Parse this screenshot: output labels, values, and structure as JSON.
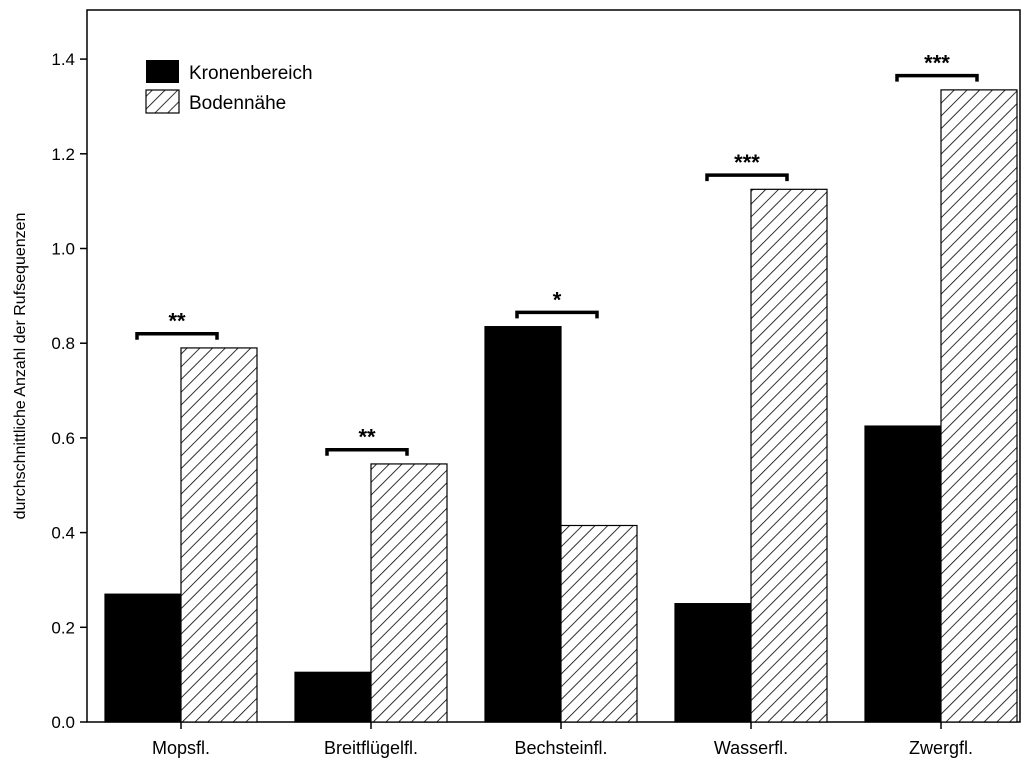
{
  "chart_data": {
    "type": "bar",
    "title": "",
    "xlabel": "",
    "ylabel": "durchschnittliche Anzahl der Rufsequenzen",
    "ylim": [
      0,
      1.5
    ],
    "yticks": [
      "0.0",
      "0.2",
      "0.4",
      "0.6",
      "0.8",
      "1.0",
      "1.2",
      "1.4"
    ],
    "grid": false,
    "legend_position": "top-left",
    "categories": [
      "Mopsfl.",
      "Breitflügelfl.",
      "Bechsteinfl.",
      "Wasserfl.",
      "Zwergfl."
    ],
    "series": [
      {
        "name": "Kronenbereich",
        "fill": "solid",
        "color": "#000000",
        "values": [
          0.27,
          0.105,
          0.835,
          0.25,
          0.625
        ]
      },
      {
        "name": "Bodennähe",
        "fill": "hatched",
        "color": "#000000",
        "values": [
          0.79,
          0.545,
          0.415,
          1.125,
          1.335
        ]
      }
    ],
    "significance": [
      {
        "category": "Mopsfl.",
        "label": "**",
        "y": 0.82
      },
      {
        "category": "Breitflügelfl.",
        "label": "**",
        "y": 0.575
      },
      {
        "category": "Bechsteinfl.",
        "label": "*",
        "y": 0.865
      },
      {
        "category": "Wasserfl.",
        "label": "***",
        "y": 1.155
      },
      {
        "category": "Zwergfl.",
        "label": "***",
        "y": 1.365
      }
    ]
  }
}
